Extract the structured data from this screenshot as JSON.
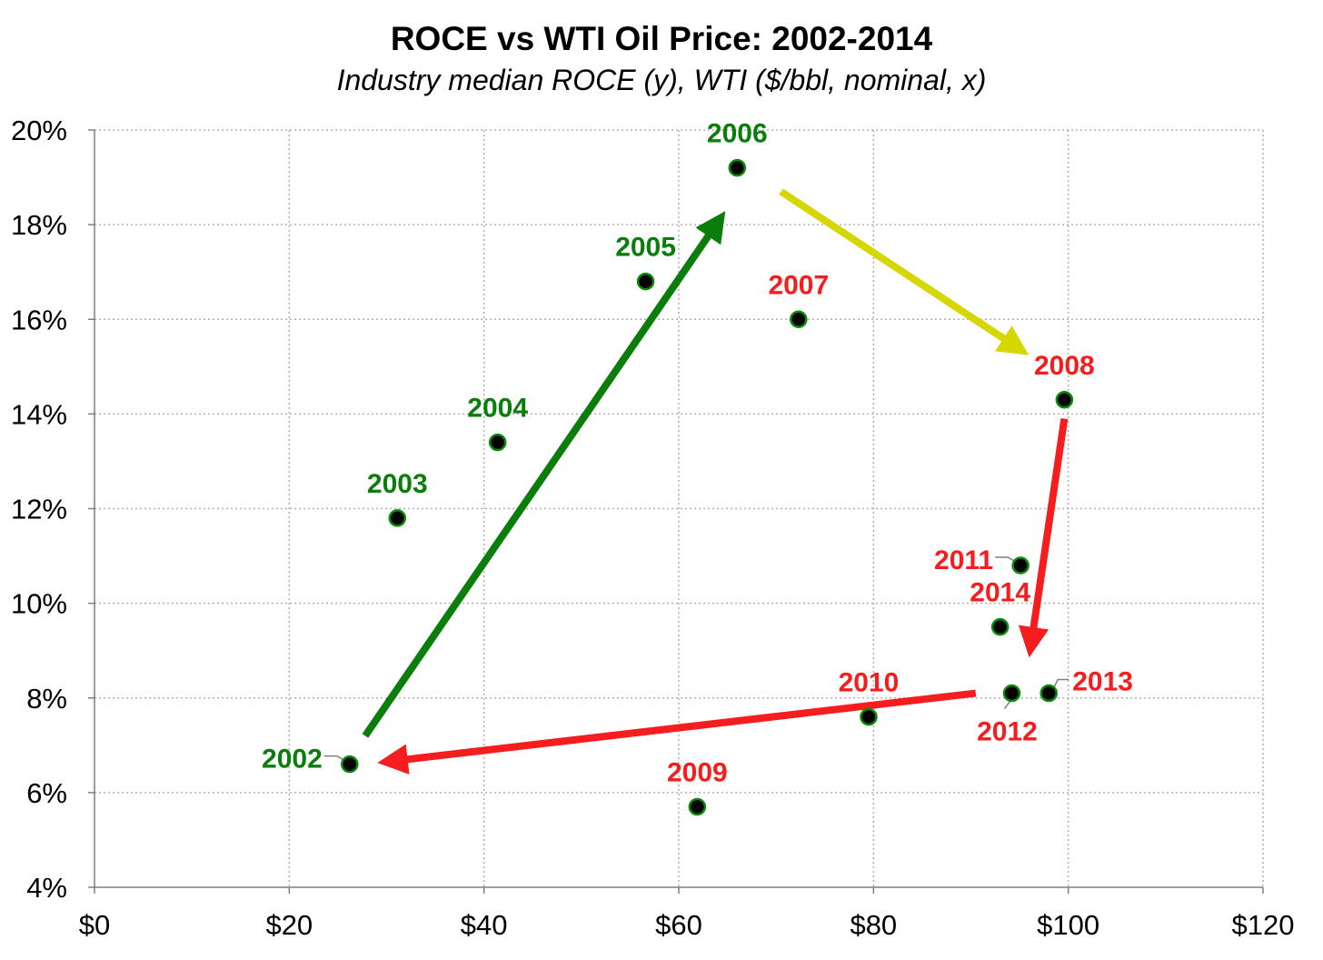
{
  "colors": {
    "green": "#0a7d0a",
    "red": "#f51d1d",
    "yellow": "#d6d600",
    "marker_fill": "#000000",
    "marker_stroke": "#0a8a0a",
    "grid": "#b0b0b0",
    "axis": "#000000"
  },
  "chart_data": {
    "type": "scatter",
    "title": "ROCE vs WTI Oil Price: 2002-2014",
    "subtitle": "Industry median ROCE (y), WTI ($/bbl, nominal, x)",
    "xlabel": "",
    "ylabel": "",
    "xlim": [
      0,
      120
    ],
    "ylim": [
      4,
      20
    ],
    "x_ticks": [
      0,
      20,
      40,
      60,
      80,
      100,
      120
    ],
    "x_tick_labels": [
      "$0",
      "$20",
      "$40",
      "$60",
      "$80",
      "$100",
      "$120"
    ],
    "y_ticks": [
      4,
      6,
      8,
      10,
      12,
      14,
      16,
      18,
      20
    ],
    "y_tick_labels": [
      "4%",
      "6%",
      "8%",
      "10%",
      "12%",
      "14%",
      "16%",
      "18%",
      "20%"
    ],
    "grid": true,
    "legend": "none",
    "points": [
      {
        "label": "2002",
        "x": 26.2,
        "y": 6.6,
        "color": "green",
        "label_pos": "left"
      },
      {
        "label": "2003",
        "x": 31.1,
        "y": 11.8,
        "color": "green",
        "label_pos": "above"
      },
      {
        "label": "2004",
        "x": 41.4,
        "y": 13.4,
        "color": "green",
        "label_pos": "above"
      },
      {
        "label": "2005",
        "x": 56.6,
        "y": 16.8,
        "color": "green",
        "label_pos": "above"
      },
      {
        "label": "2006",
        "x": 66.0,
        "y": 19.2,
        "color": "green",
        "label_pos": "above"
      },
      {
        "label": "2007",
        "x": 72.3,
        "y": 16.0,
        "color": "red",
        "label_pos": "above"
      },
      {
        "label": "2008",
        "x": 99.6,
        "y": 14.3,
        "color": "red",
        "label_pos": "above"
      },
      {
        "label": "2009",
        "x": 61.9,
        "y": 5.7,
        "color": "red",
        "label_pos": "above"
      },
      {
        "label": "2010",
        "x": 79.5,
        "y": 7.6,
        "color": "red",
        "label_pos": "above"
      },
      {
        "label": "2011",
        "x": 95.1,
        "y": 10.8,
        "color": "red",
        "label_pos": "left"
      },
      {
        "label": "2012",
        "x": 94.2,
        "y": 8.1,
        "color": "red",
        "label_pos": "below"
      },
      {
        "label": "2013",
        "x": 98.0,
        "y": 8.1,
        "color": "red",
        "label_pos": "right"
      },
      {
        "label": "2014",
        "x": 93.0,
        "y": 9.5,
        "color": "red",
        "label_pos": "above"
      }
    ],
    "arrows": [
      {
        "from": [
          27.8,
          7.2
        ],
        "to": [
          65.5,
          18.5
        ],
        "color": "green"
      },
      {
        "from": [
          70.5,
          18.7
        ],
        "to": [
          97.0,
          15.1
        ],
        "color": "yellow"
      },
      {
        "from": [
          99.6,
          13.9
        ],
        "to": [
          95.8,
          8.6
        ],
        "color": "red"
      },
      {
        "from": [
          90.5,
          8.1
        ],
        "to": [
          27.8,
          6.6
        ],
        "color": "red"
      }
    ]
  }
}
